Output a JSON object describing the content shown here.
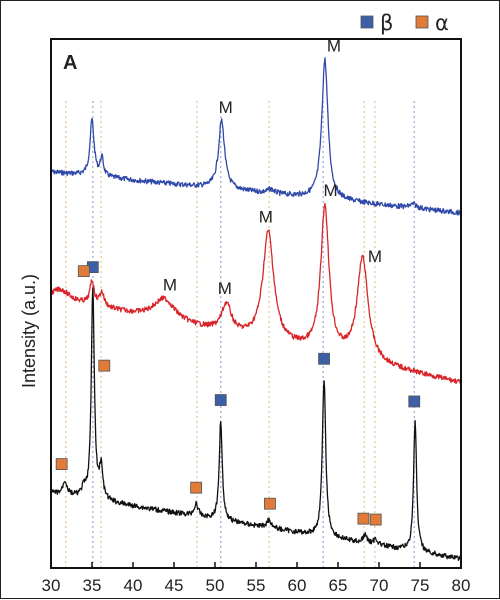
{
  "chart_data": {
    "type": "line",
    "panel_label": "A",
    "ylabel": "Intensity (a.u.)",
    "xlabel": "",
    "xlim": [
      30,
      80
    ],
    "xticks": [
      30,
      35,
      40,
      45,
      50,
      55,
      60,
      65,
      70,
      75,
      80
    ],
    "legend": [
      {
        "symbol": "β",
        "color": "#3d5fa8"
      },
      {
        "symbol": "α",
        "color": "#e07b39"
      }
    ],
    "reference_lines": {
      "orange": [
        31.8,
        36.1,
        47.8,
        56.6,
        68.2,
        69.5
      ],
      "blue": [
        35.1,
        50.7,
        63.2,
        74.3
      ]
    },
    "series": [
      {
        "color": "#2f49a8",
        "baseline_start": 171,
        "baseline_end": 212,
        "peaks": [
          {
            "x": 35.0,
            "h": 56,
            "w": 0.3
          },
          {
            "x": 36.2,
            "h": 18,
            "w": 0.25
          },
          {
            "x": 50.8,
            "h": 68,
            "w": 0.45
          },
          {
            "x": 56.8,
            "h": 4,
            "w": 0.5
          },
          {
            "x": 63.4,
            "h": 140,
            "w": 0.45
          },
          {
            "x": 74.2,
            "h": 4,
            "w": 0.5
          }
        ],
        "labels": [
          {
            "text": "M",
            "x": 51.3
          },
          {
            "text": "M",
            "x": 64.5
          }
        ]
      },
      {
        "color": "#d9252a",
        "baseline_start": 297,
        "baseline_end": 382,
        "peaks": [
          {
            "x": 31.2,
            "h": 10,
            "w": 1.2
          },
          {
            "x": 35.0,
            "h": 24,
            "w": 0.3
          },
          {
            "x": 36.2,
            "h": 14,
            "w": 0.35
          },
          {
            "x": 43.8,
            "h": 22,
            "w": 1.6
          },
          {
            "x": 51.4,
            "h": 28,
            "w": 0.7
          },
          {
            "x": 56.5,
            "h": 110,
            "w": 0.8
          },
          {
            "x": 63.4,
            "h": 146,
            "w": 0.6
          },
          {
            "x": 68.0,
            "h": 103,
            "w": 0.8
          }
        ],
        "labels": [
          {
            "text": "M",
            "x": 44.5
          },
          {
            "text": "M",
            "x": 51.2
          },
          {
            "text": "M",
            "x": 56.2
          },
          {
            "text": "M",
            "x": 64.1
          },
          {
            "text": "M",
            "x": 69.5
          }
        ]
      },
      {
        "color": "#111111",
        "baseline_start": 492,
        "baseline_end": 558,
        "peaks": [
          {
            "x": 31.7,
            "h": 14,
            "w": 0.3
          },
          {
            "x": 34.0,
            "h": 8,
            "w": 0.3
          },
          {
            "x": 35.1,
            "h": 210,
            "w": 0.22
          },
          {
            "x": 36.1,
            "h": 32,
            "w": 0.25
          },
          {
            "x": 47.7,
            "h": 12,
            "w": 0.3
          },
          {
            "x": 50.7,
            "h": 100,
            "w": 0.22
          },
          {
            "x": 56.6,
            "h": 8,
            "w": 0.35
          },
          {
            "x": 63.3,
            "h": 158,
            "w": 0.25
          },
          {
            "x": 68.3,
            "h": 8,
            "w": 0.3
          },
          {
            "x": 69.6,
            "h": 6,
            "w": 0.3
          },
          {
            "x": 74.4,
            "h": 130,
            "w": 0.22
          }
        ],
        "markers": [
          {
            "phase": "β",
            "x": 35.1
          },
          {
            "phase": "β",
            "x": 50.7
          },
          {
            "phase": "β",
            "x": 63.3
          },
          {
            "phase": "β",
            "x": 74.3
          },
          {
            "phase": "α",
            "x": 31.3
          },
          {
            "phase": "α",
            "x": 34.0
          },
          {
            "phase": "α",
            "x": 36.5
          },
          {
            "phase": "α",
            "x": 47.7
          },
          {
            "phase": "α",
            "x": 56.7
          },
          {
            "phase": "α",
            "x": 68.1
          },
          {
            "phase": "α",
            "x": 69.6
          }
        ]
      }
    ]
  }
}
